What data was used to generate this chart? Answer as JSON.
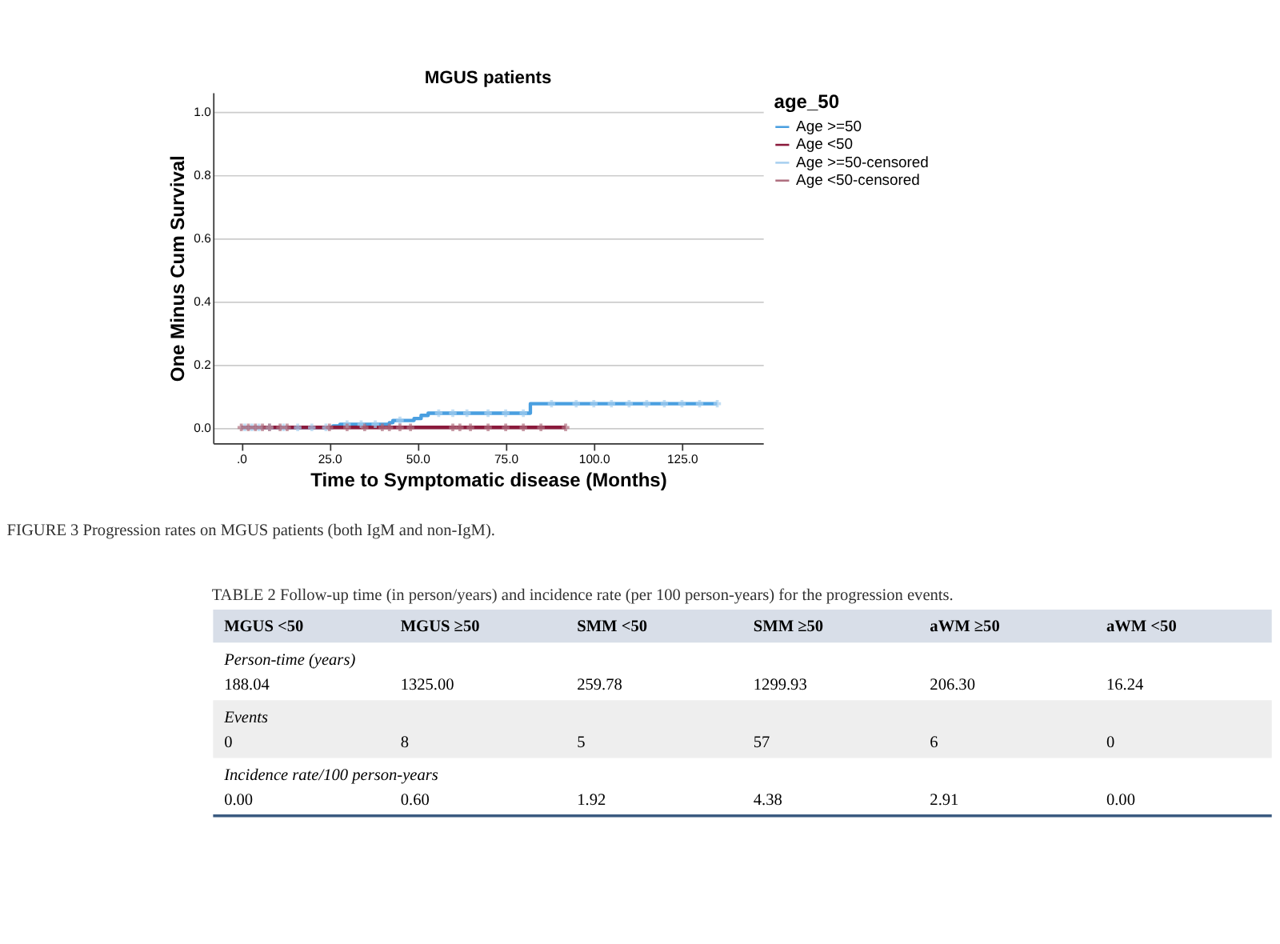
{
  "chart_data": [
    {
      "type": "step",
      "title": "MGUS patients",
      "xlabel": "Time to Symptomatic disease (Months)",
      "ylabel": "One Minus Cum Survival",
      "legend_title": "age_50",
      "legend": "top right",
      "grid": "y",
      "xlim": [
        -8,
        148
      ],
      "xticks": [
        {
          "value": 0,
          "label": ".0"
        },
        {
          "value": 25,
          "label": "25.0"
        },
        {
          "value": 50,
          "label": "50.0"
        },
        {
          "value": 75,
          "label": "75.0"
        },
        {
          "value": 100,
          "label": "100.0"
        },
        {
          "value": 125,
          "label": "125.0"
        }
      ],
      "ylim": [
        -0.05,
        1.06
      ],
      "yticks": [
        {
          "value": 0,
          "label": "0.0"
        },
        {
          "value": 0.2,
          "label": "0.2"
        },
        {
          "value": 0.4,
          "label": "0.4"
        },
        {
          "value": 0.6,
          "label": "0.6"
        },
        {
          "value": 0.8,
          "label": "0.8"
        },
        {
          "value": 1.0,
          "label": "1.0"
        }
      ],
      "annotations": [
        "FIGURE 3 Progression rates on MGUS patients (both IgM and non-IgM)."
      ],
      "series": [
        {
          "name": "Age >=50",
          "color": "#4a9fe0",
          "type": "step",
          "x": [
            0,
            26,
            28,
            42,
            43,
            49,
            51,
            53,
            82,
            135
          ],
          "values": [
            0,
            0.005,
            0.01,
            0.015,
            0.022,
            0.028,
            0.038,
            0.045,
            0.075,
            0.075
          ]
        },
        {
          "name": "Age <50",
          "color": "#8b1a3c",
          "type": "step",
          "x": [
            0,
            92
          ],
          "values": [
            0,
            0
          ]
        },
        {
          "name": "Age >=50-censored",
          "color": "#a8d0f0",
          "type": "scatter",
          "marker": "cross",
          "x": [
            1,
            3,
            5,
            8,
            12,
            16,
            20,
            24,
            30,
            34,
            38,
            45,
            56,
            60,
            64,
            70,
            75,
            80,
            88,
            95,
            100,
            105,
            110,
            115,
            120,
            125,
            130,
            135
          ],
          "values": [
            0,
            0,
            0,
            0,
            0,
            0,
            0,
            0,
            0.01,
            0.01,
            0.01,
            0.022,
            0.045,
            0.045,
            0.045,
            0.045,
            0.045,
            0.045,
            0.075,
            0.075,
            0.075,
            0.075,
            0.075,
            0.075,
            0.075,
            0.075,
            0.075,
            0.075
          ]
        },
        {
          "name": "Age <50-censored",
          "color": "#b07080",
          "type": "scatter",
          "marker": "cross",
          "x": [
            0,
            2,
            4,
            6,
            8,
            11,
            13,
            25,
            30,
            35,
            40,
            42,
            45,
            48,
            60,
            62,
            65,
            70,
            75,
            80,
            85,
            92
          ],
          "values": [
            0,
            0,
            0,
            0,
            0,
            0,
            0,
            0,
            0,
            0,
            0,
            0,
            0,
            0,
            0,
            0,
            0,
            0,
            0,
            0,
            0,
            0
          ]
        }
      ]
    },
    {
      "type": "other",
      "title": "TABLE 2 Follow-up time (in person/years) and incidence rate (per 100 person-years) for the progression events.",
      "categories": [
        "MGUS <50",
        "MGUS ≥50",
        "SMM <50",
        "SMM ≥50",
        "aWM ≥50",
        "aWM <50"
      ],
      "y_categories": [
        "Person-time (years)",
        "Events",
        "Incidence rate/100 person-years"
      ],
      "cell_labels": [
        [
          "188.04",
          "1325.00",
          "259.78",
          "1299.93",
          "206.30",
          "16.24"
        ],
        [
          "0",
          "8",
          "5",
          "57",
          "6",
          "0"
        ],
        [
          "0.00",
          "0.60",
          "1.92",
          "4.38",
          "2.91",
          "0.00"
        ]
      ]
    }
  ]
}
